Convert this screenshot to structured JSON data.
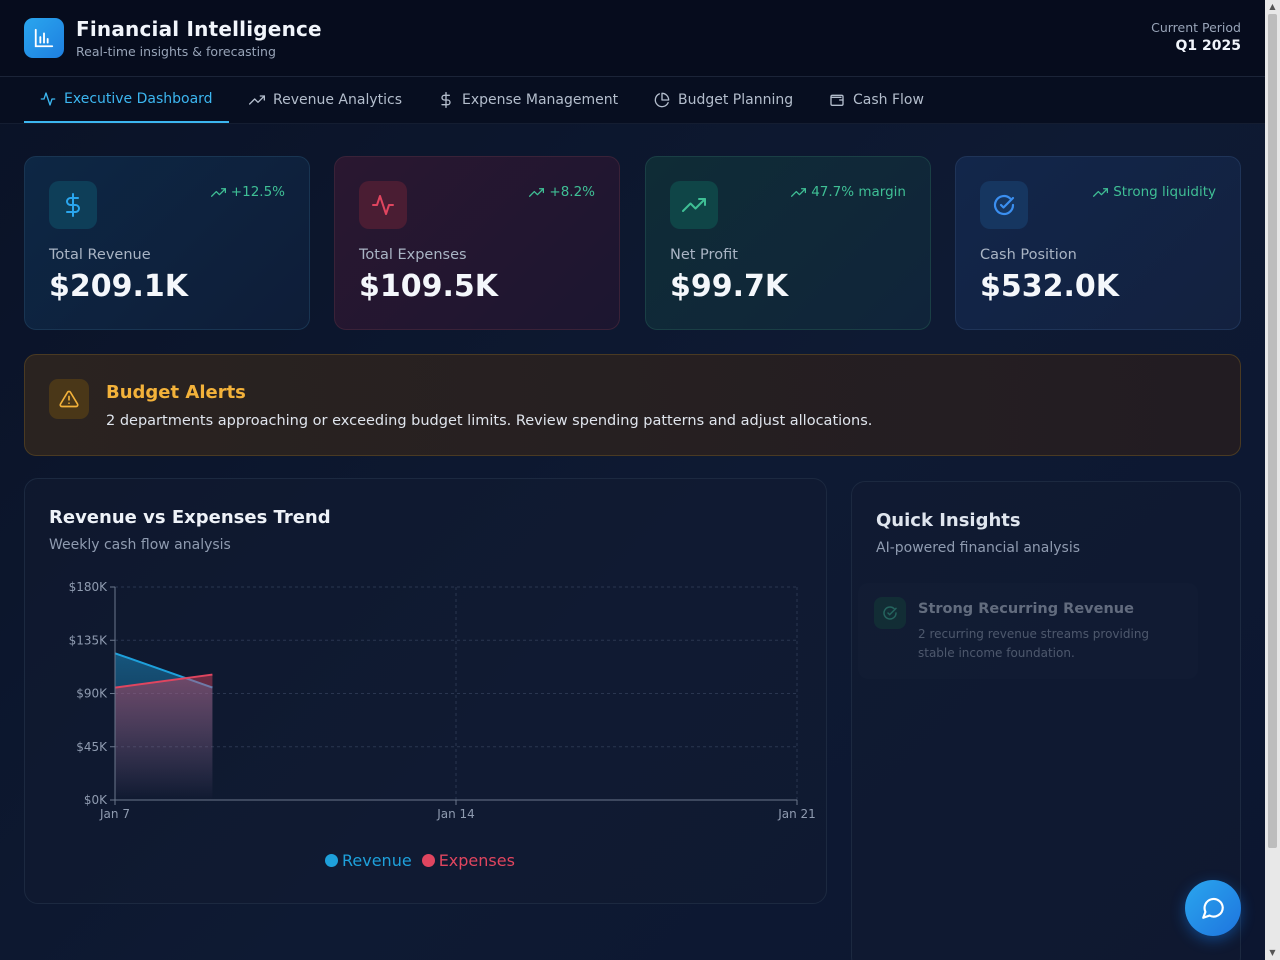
{
  "header": {
    "title": "Financial Intelligence",
    "subtitle": "Real-time insights & forecasting",
    "period_label": "Current Period",
    "period_value": "Q1 2025"
  },
  "nav": {
    "tabs": [
      {
        "label": "Executive Dashboard",
        "icon": "activity-icon",
        "active": true
      },
      {
        "label": "Revenue Analytics",
        "icon": "trending-up-icon",
        "active": false
      },
      {
        "label": "Expense Management",
        "icon": "dollar-icon",
        "active": false
      },
      {
        "label": "Budget Planning",
        "icon": "pie-chart-icon",
        "active": false
      },
      {
        "label": "Cash Flow",
        "icon": "wallet-icon",
        "active": false
      }
    ]
  },
  "stats": [
    {
      "label": "Total Revenue",
      "value": "$209.1K",
      "trend": "+12.5%",
      "icon": "dollar-icon",
      "accent": "#2aa6ee"
    },
    {
      "label": "Total Expenses",
      "value": "$109.5K",
      "trend": "+8.2%",
      "icon": "activity-icon",
      "accent": "#e0455f"
    },
    {
      "label": "Net Profit",
      "value": "$99.7K",
      "trend": "47.7% margin",
      "icon": "trending-up-icon",
      "accent": "#3fbf95"
    },
    {
      "label": "Cash Position",
      "value": "$532.0K",
      "trend": "Strong liquidity",
      "icon": "check-circle-icon",
      "accent": "#3b8ff0"
    }
  ],
  "alert": {
    "title": "Budget Alerts",
    "message": "2 departments approaching or exceeding budget limits. Review spending patterns and adjust allocations.",
    "icon": "warning-icon",
    "color": "#f3b23a"
  },
  "chart_panel": {
    "title": "Revenue vs Expenses Trend",
    "subtitle": "Weekly cash flow analysis"
  },
  "chart_data": {
    "type": "area",
    "x": [
      "Jan 7",
      "Jan 9"
    ],
    "x_ticks": [
      "Jan 7",
      "Jan 14",
      "Jan 21"
    ],
    "x_range": [
      "Jan 7",
      "Jan 21"
    ],
    "y_ticks": [
      "$0K",
      "$45K",
      "$90K",
      "$135K",
      "$180K"
    ],
    "ylim": [
      0,
      180000
    ],
    "grid": true,
    "legend_position": "bottom-center",
    "series": [
      {
        "name": "Revenue",
        "color": "#1ea0db",
        "values": [
          124000,
          95000
        ]
      },
      {
        "name": "Expenses",
        "color": "#e0455f",
        "values": [
          95000,
          106000
        ]
      }
    ]
  },
  "insights": {
    "title": "Quick Insights",
    "subtitle": "AI-powered financial analysis",
    "items": [
      {
        "title": "Strong Recurring Revenue",
        "description": "2 recurring revenue streams providing stable income foundation.",
        "icon": "check-circle-icon"
      }
    ]
  },
  "chat": {
    "icon": "chat-bubble-icon"
  }
}
